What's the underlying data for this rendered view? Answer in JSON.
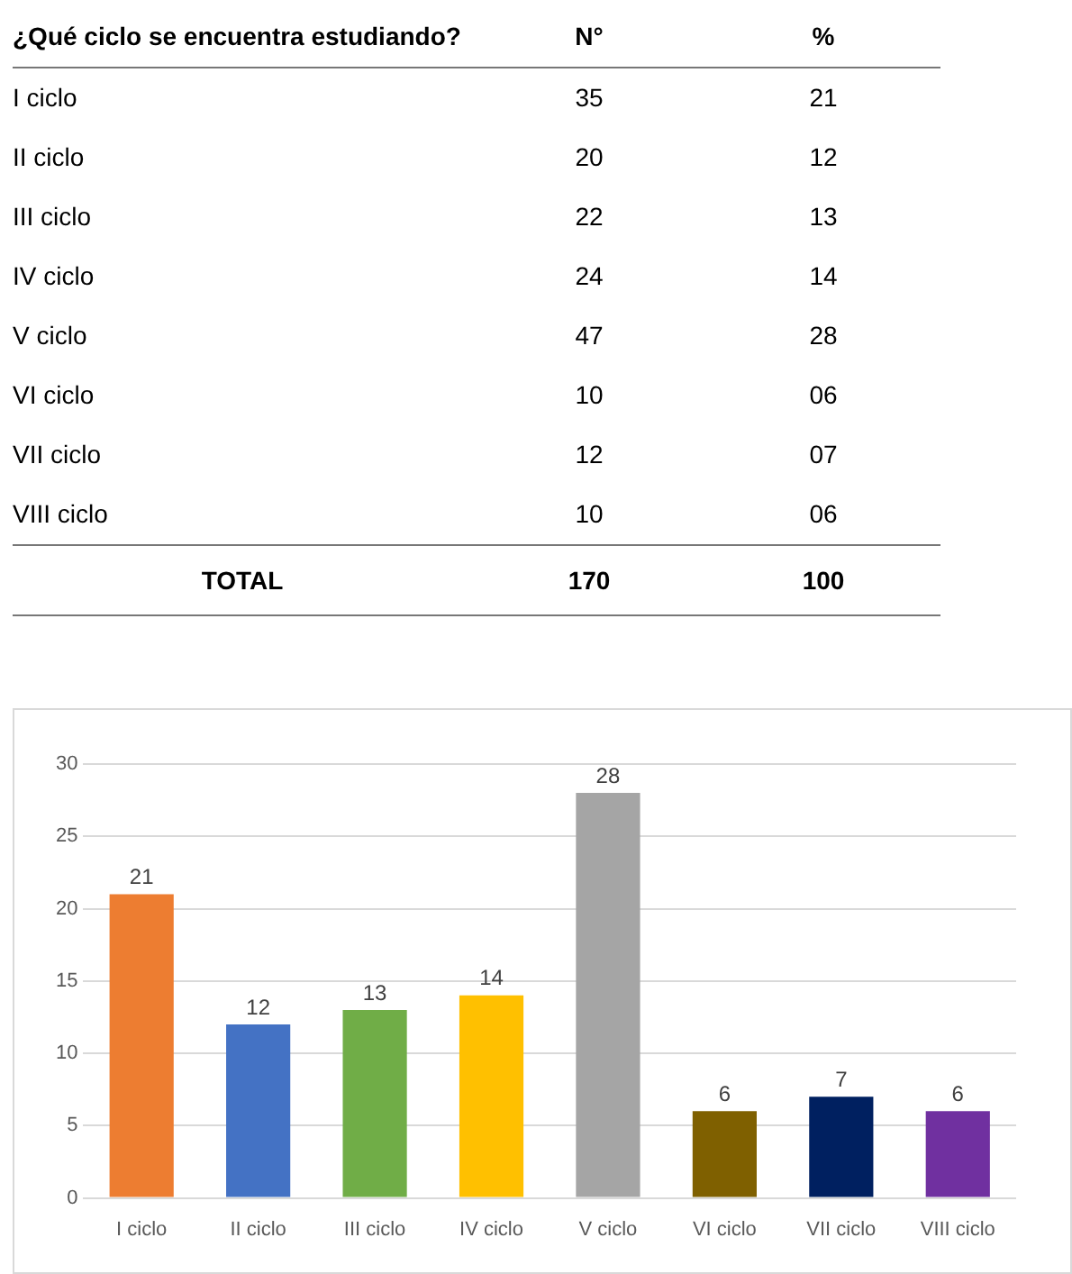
{
  "chart_data": [
    {
      "type": "other",
      "title": "¿Qué ciclo se encuentra estudiando?",
      "annotations": [
        "N°",
        "%",
        "I ciclo",
        "35",
        "21",
        "II ciclo",
        "20",
        "12",
        "III ciclo",
        "22",
        "13",
        "IV ciclo",
        "24",
        "14",
        "V ciclo",
        "47",
        "28",
        "VI ciclo",
        "10",
        "06",
        "VII ciclo",
        "12",
        "07",
        "VIII ciclo",
        "10",
        "06",
        "TOTAL",
        "170",
        "100"
      ]
    },
    {
      "type": "bar",
      "categories": [
        "I ciclo",
        "II ciclo",
        "III ciclo",
        "IV ciclo",
        "V ciclo",
        "VI ciclo",
        "VII ciclo",
        "VIII ciclo"
      ],
      "values": [
        21,
        12,
        13,
        14,
        28,
        6,
        7,
        6
      ],
      "colors": [
        "#ed7d31",
        "#4472c4",
        "#70ad47",
        "#ffc000",
        "#a5a5a5",
        "#7f6000",
        "#002060",
        "#7030a0"
      ],
      "ylim": [
        0,
        30
      ],
      "yticks": [
        0,
        5,
        10,
        15,
        20,
        25,
        30
      ],
      "grid": "y",
      "legend": false,
      "data_labels": true
    }
  ]
}
